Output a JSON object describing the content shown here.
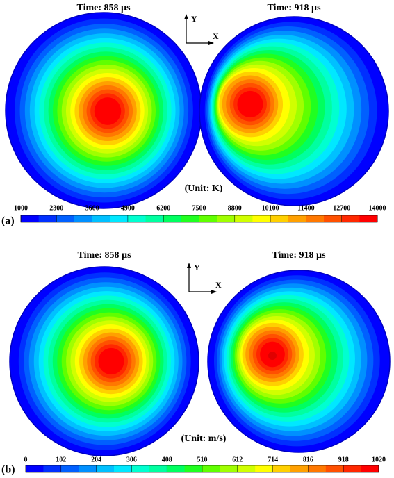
{
  "panels": [
    {
      "label": "(a)",
      "unit": "(Unit: K)",
      "axis_y": "Y",
      "axis_x": "X",
      "plots": [
        {
          "time": "Time: 858 µs"
        },
        {
          "time": "Time: 918 µs"
        }
      ],
      "colorbar": {
        "ticks": [
          1000,
          2300,
          3600,
          4900,
          6200,
          7500,
          8800,
          10100,
          11400,
          12700,
          14000
        ]
      }
    },
    {
      "label": "(b)",
      "unit": "(Unit: m/s)",
      "axis_y": "Y",
      "axis_x": "X",
      "plots": [
        {
          "time": "Time: 858 µs"
        },
        {
          "time": "Time: 918 µs"
        }
      ],
      "colorbar": {
        "ticks": [
          0,
          102,
          204,
          306,
          408,
          510,
          612,
          714,
          816,
          918,
          1020
        ]
      }
    }
  ],
  "colors": [
    "#0000ff",
    "#0030ff",
    "#0060ff",
    "#0090ff",
    "#00c0ff",
    "#00e8ff",
    "#00ffd0",
    "#00ffa0",
    "#00ff60",
    "#20ff20",
    "#60ff00",
    "#a0ff00",
    "#d0ff00",
    "#ffff00",
    "#ffd000",
    "#ffa000",
    "#ff7800",
    "#ff5000",
    "#ff2800",
    "#ff0000"
  ]
}
